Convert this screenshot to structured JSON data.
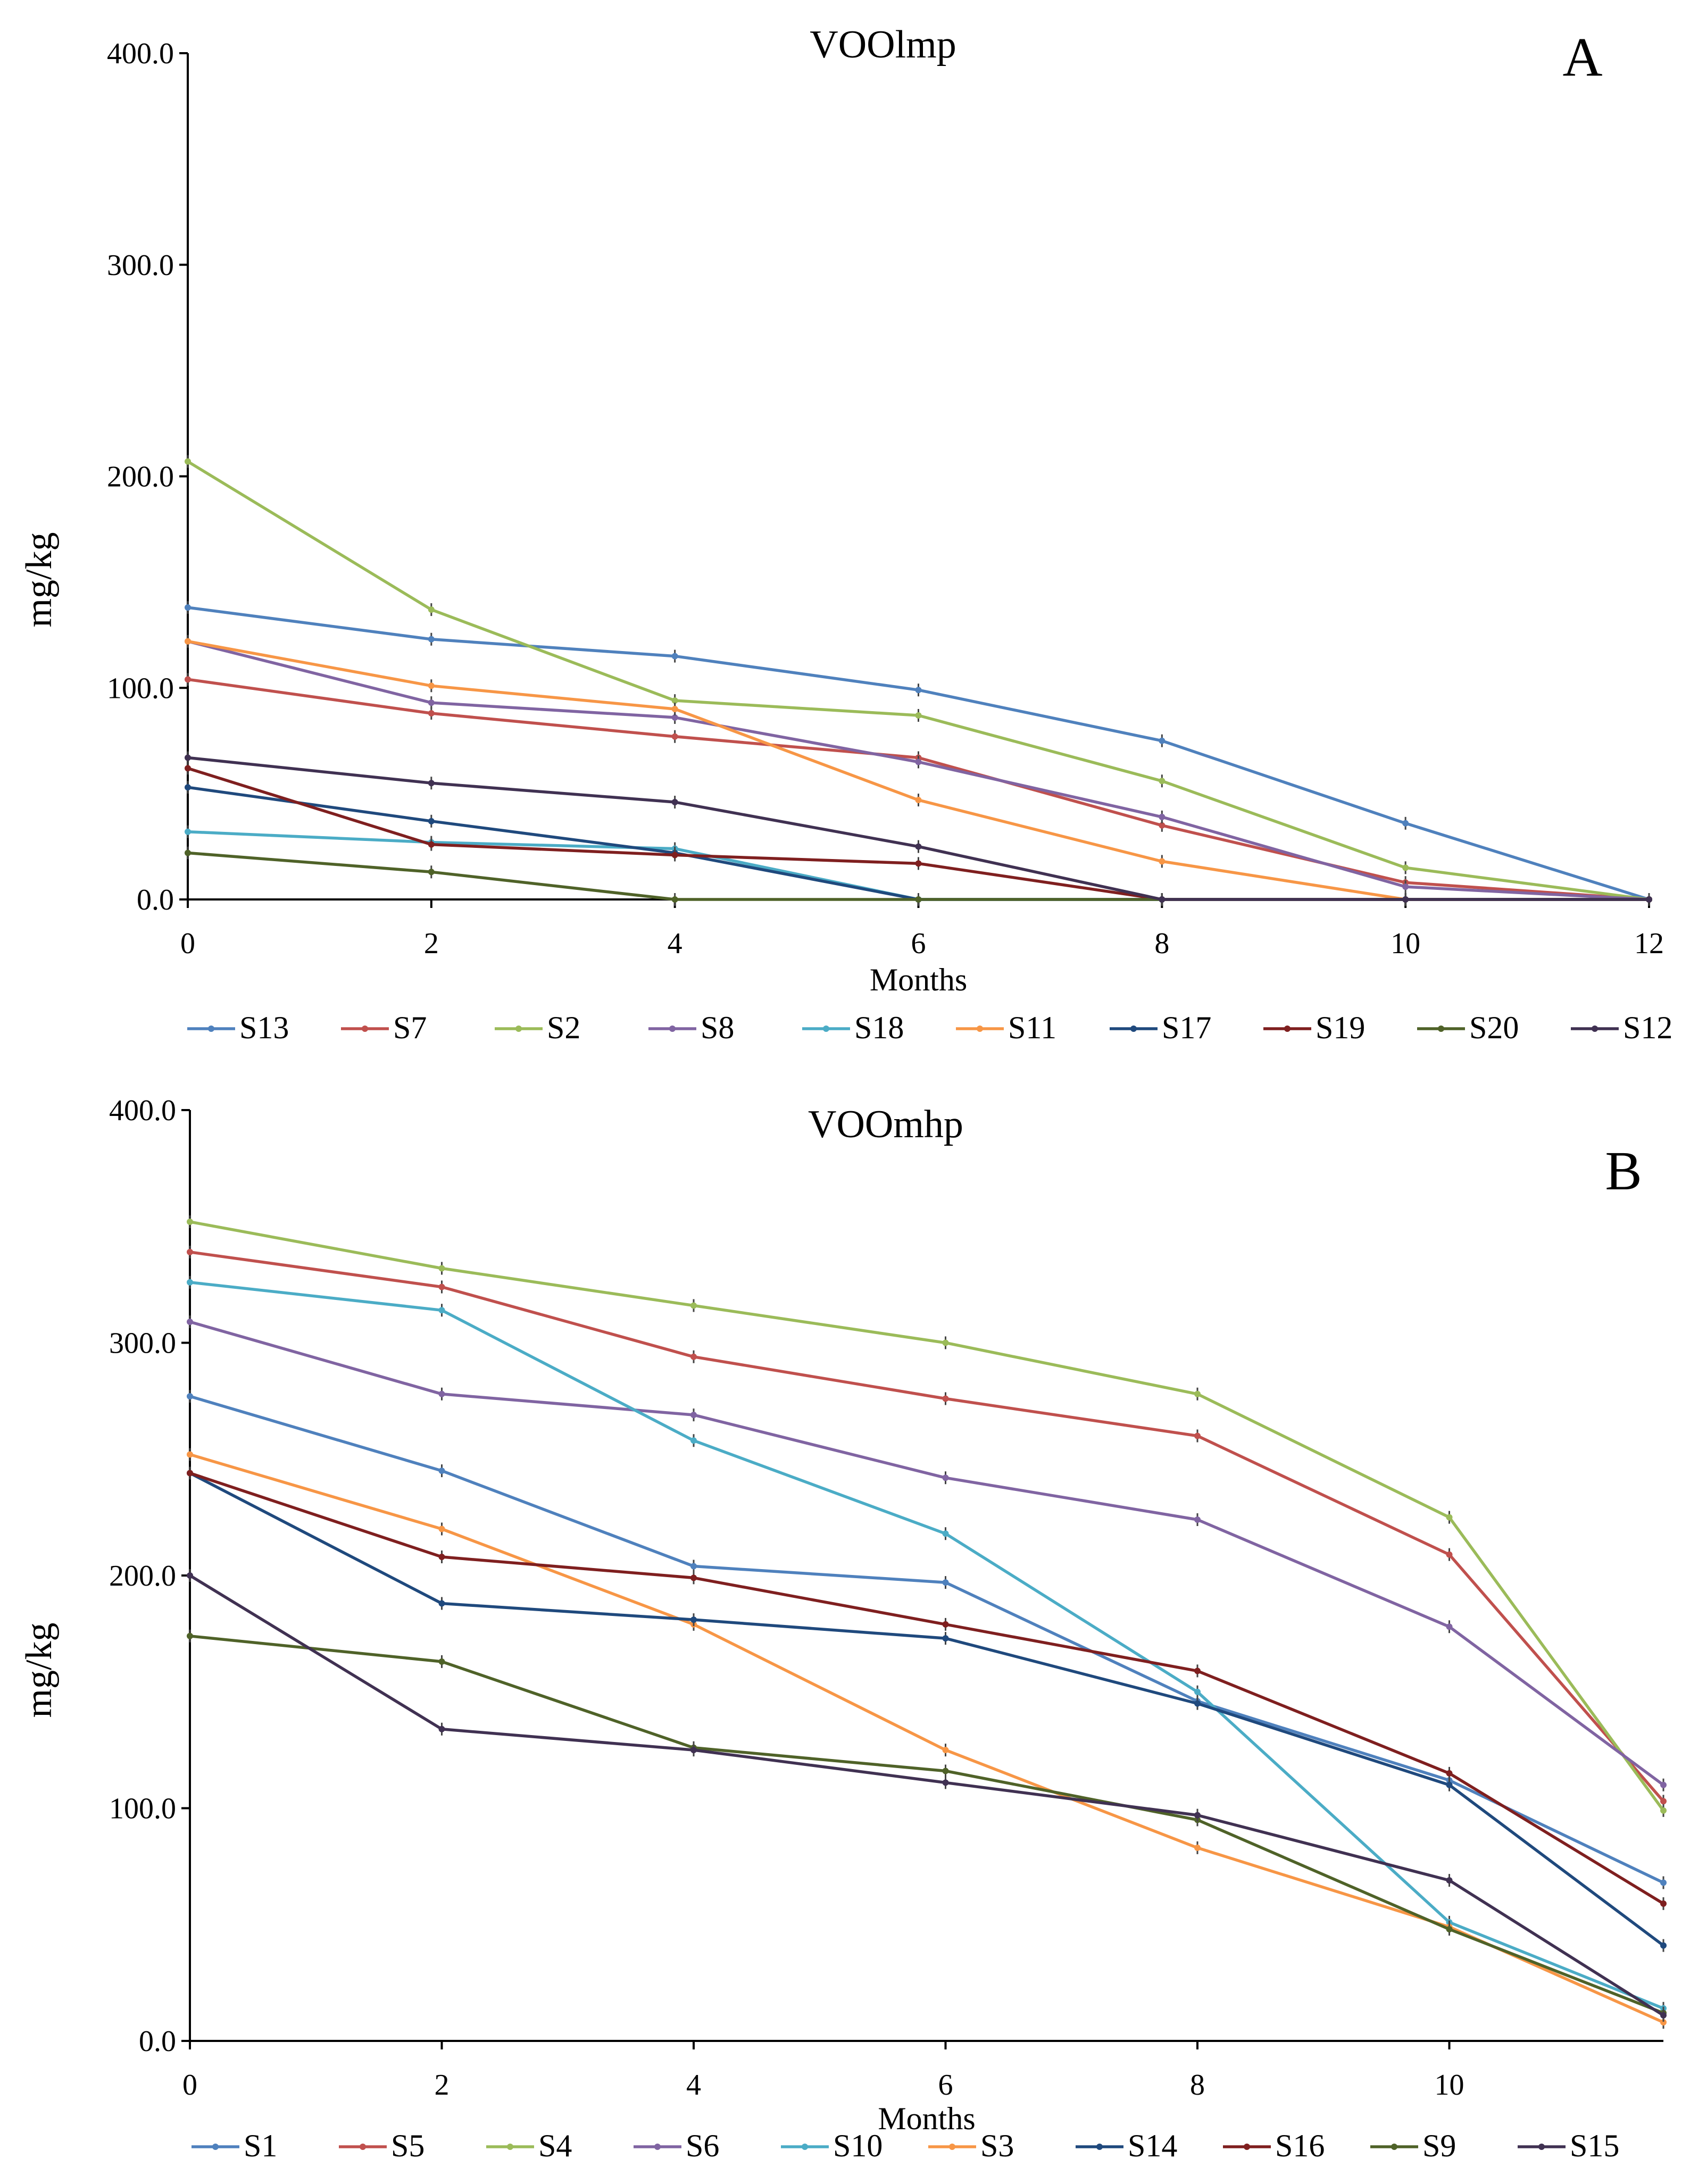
{
  "chart_data": [
    {
      "type": "line",
      "title": "VOOlmp",
      "panel_label": "A",
      "xlabel": "Months",
      "ylabel": "mg/kg",
      "xlim": [
        0,
        12
      ],
      "ylim": [
        0,
        400
      ],
      "x_ticks": [
        "0",
        "2",
        "4",
        "6",
        "8",
        "10",
        "12"
      ],
      "y_ticks": [
        "0.0",
        "100.0",
        "200.0",
        "300.0",
        "400.0"
      ],
      "x": [
        0,
        2,
        4,
        6,
        8,
        10,
        12
      ],
      "legend_position": "bottom",
      "series": [
        {
          "name": "S13",
          "color": "#4F81BD",
          "values": [
            138,
            123,
            115,
            99,
            75,
            36,
            0
          ]
        },
        {
          "name": "S7",
          "color": "#C0504D",
          "values": [
            104,
            88,
            77,
            67,
            35,
            8,
            0
          ]
        },
        {
          "name": "S2",
          "color": "#9BBB59",
          "values": [
            207,
            137,
            94,
            87,
            56,
            15,
            0
          ]
        },
        {
          "name": "S8",
          "color": "#8064A2",
          "values": [
            122,
            93,
            86,
            65,
            39,
            6,
            0
          ]
        },
        {
          "name": "S18",
          "color": "#4BACC6",
          "values": [
            32,
            27,
            24,
            0,
            0,
            0,
            0
          ]
        },
        {
          "name": "S11",
          "color": "#F79646",
          "values": [
            122,
            101,
            90,
            47,
            18,
            0,
            0
          ]
        },
        {
          "name": "S17",
          "color": "#1F497D",
          "values": [
            53,
            37,
            22,
            0,
            0,
            0,
            0
          ]
        },
        {
          "name": "S19",
          "color": "#7F1F1F",
          "values": [
            62,
            26,
            21,
            17,
            0,
            0,
            0
          ]
        },
        {
          "name": "S20",
          "color": "#4F6228",
          "values": [
            22,
            13,
            0,
            0,
            0,
            0,
            0
          ]
        },
        {
          "name": "S12",
          "color": "#403152",
          "values": [
            67,
            55,
            46,
            25,
            0,
            0,
            0
          ]
        }
      ]
    },
    {
      "type": "line",
      "title": "VOOmhp",
      "panel_label": "B",
      "xlabel": "Months",
      "ylabel": "mg/kg",
      "xlim": [
        0,
        11.7
      ],
      "ylim": [
        0,
        400
      ],
      "x_ticks": [
        "0",
        "2",
        "4",
        "6",
        "8",
        "10"
      ],
      "y_ticks": [
        "0.0",
        "100.0",
        "200.0",
        "300.0",
        "400.0"
      ],
      "x": [
        0,
        2,
        4,
        6,
        8,
        10,
        11.7
      ],
      "legend_position": "bottom",
      "series": [
        {
          "name": "S1",
          "color": "#4F81BD",
          "values": [
            277,
            245,
            204,
            197,
            146,
            112,
            68
          ]
        },
        {
          "name": "S5",
          "color": "#C0504D",
          "values": [
            339,
            324,
            294,
            276,
            260,
            209,
            103
          ]
        },
        {
          "name": "S4",
          "color": "#9BBB59",
          "values": [
            352,
            332,
            316,
            300,
            278,
            225,
            99
          ]
        },
        {
          "name": "S6",
          "color": "#8064A2",
          "values": [
            309,
            278,
            269,
            242,
            224,
            178,
            110
          ]
        },
        {
          "name": "S10",
          "color": "#4BACC6",
          "values": [
            326,
            314,
            258,
            218,
            150,
            51,
            14
          ]
        },
        {
          "name": "S3",
          "color": "#F79646",
          "values": [
            252,
            220,
            179,
            125,
            83,
            49,
            8
          ]
        },
        {
          "name": "S14",
          "color": "#1F497D",
          "values": [
            244,
            188,
            181,
            173,
            145,
            110,
            41
          ]
        },
        {
          "name": "S16",
          "color": "#7F1F1F",
          "values": [
            244,
            208,
            199,
            179,
            159,
            115,
            59
          ]
        },
        {
          "name": "S9",
          "color": "#4F6228",
          "values": [
            174,
            163,
            126,
            116,
            95,
            48,
            12
          ]
        },
        {
          "name": "S15",
          "color": "#403152",
          "values": [
            200,
            134,
            125,
            111,
            97,
            69,
            11
          ]
        }
      ]
    }
  ]
}
